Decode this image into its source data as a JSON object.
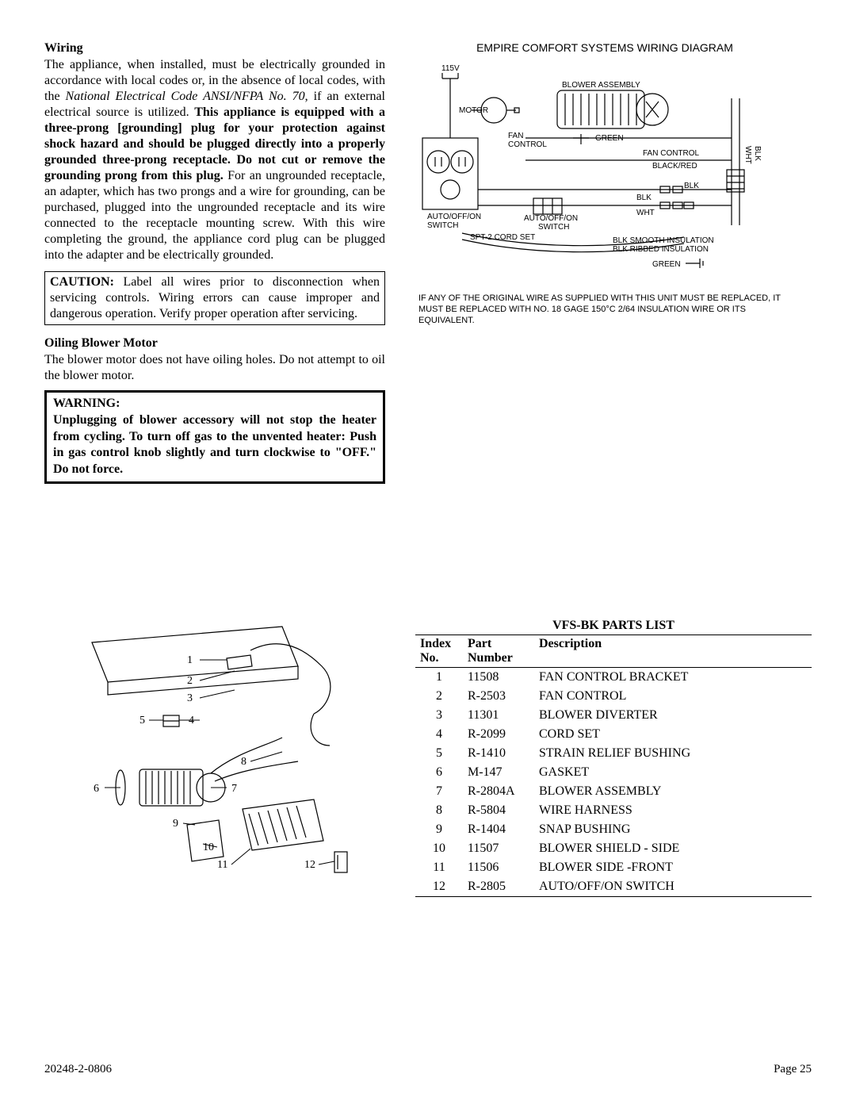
{
  "wiring": {
    "heading": "Wiring",
    "p1a": "The appliance, when installed, must be electrically grounded in accordance with local codes or, in the absence of local codes, with the ",
    "p1_italic": "National Electrical Code ANSI/NFPA No. 70",
    "p1b": ", if an external electrical source is utilized.  ",
    "p1_bold": "This appliance is equipped with a three-prong [grounding] plug for your protection against shock hazard and should be plugged directly into a properly grounded three-prong receptacle.  Do not cut or remove the grounding prong from this plug.",
    "p1c": "  For an ungrounded receptacle, an adapter, which has two prongs and a wire for grounding, can be purchased, plugged into the ungrounded receptacle and its wire connected to the receptacle mounting screw. With this wire completing the ground, the appliance cord plug can be plugged into the adapter and be electrically grounded."
  },
  "caution": {
    "label": "CAUTION:",
    "text": " Label all wires prior to disconnection when servicing controls. Wiring errors can cause improper and dangerous operation. Verify proper operation after servicing."
  },
  "oiling": {
    "heading": "Oiling Blower Motor",
    "text": "The blower motor does not have oiling holes.  Do not attempt to oil the blower motor."
  },
  "warning": {
    "heading": "WARNING:",
    "text": "Unplugging of blower accessory  will not stop the heater from cycling.  To turn off gas to the unvented heater:  Push in gas control knob slightly and turn clockwise to \"OFF.\"  Do not force."
  },
  "diagram": {
    "title": "EMPIRE COMFORT SYSTEMS WIRING DIAGRAM",
    "labels": {
      "v115": "115V",
      "motor": "MOTOR",
      "blower_assembly": "BLOWER ASSEMBLY",
      "fan_control": "FAN\nCONTROL",
      "green": "GREEN",
      "fan_control2": "FAN CONTROL",
      "black_red": "BLACK/RED",
      "blk": "BLK",
      "wht": "WHT",
      "blk2": "BLK",
      "wht2": "WHT",
      "auto_off_on": "AUTO/OFF/ON\nSWITCH",
      "auto_off_on2": "AUTO/OFF/ON\nSWITCH",
      "spt2": "SPT-2 CORD SET",
      "blk_smooth": "BLK SMOOTH INSULATION",
      "blk_ribbed": "BLK RIBBED INSULATION",
      "green2": "GREEN"
    },
    "note": "IF ANY OF THE ORIGINAL WIRE AS SUPPLIED WITH THIS UNIT MUST BE REPLACED, IT MUST BE REPLACED WITH NO. 18 GAGE 150°C 2/64 INSULATION WIRE OR ITS EQUIVALENT."
  },
  "parts": {
    "title": "VFS-BK PARTS LIST",
    "headers": {
      "idx": "Index No.",
      "part": "Part Number",
      "desc": "Description"
    },
    "rows": [
      {
        "idx": "1",
        "part": "11508",
        "desc": "FAN CONTROL BRACKET"
      },
      {
        "idx": "2",
        "part": "R-2503",
        "desc": "FAN CONTROL"
      },
      {
        "idx": "3",
        "part": "11301",
        "desc": "BLOWER DIVERTER"
      },
      {
        "idx": "4",
        "part": "R-2099",
        "desc": "CORD SET"
      },
      {
        "idx": "5",
        "part": "R-1410",
        "desc": "STRAIN RELIEF BUSHING"
      },
      {
        "idx": "6",
        "part": "M-147",
        "desc": "GASKET"
      },
      {
        "idx": "7",
        "part": "R-2804A",
        "desc": "BLOWER ASSEMBLY"
      },
      {
        "idx": "8",
        "part": "R-5804",
        "desc": "WIRE HARNESS"
      },
      {
        "idx": "9",
        "part": "R-1404",
        "desc": "SNAP BUSHING"
      },
      {
        "idx": "10",
        "part": "11507",
        "desc": "BLOWER SHIELD - SIDE"
      },
      {
        "idx": "11",
        "part": "11506",
        "desc": "BLOWER SIDE -FRONT"
      },
      {
        "idx": "12",
        "part": "R-2805",
        "desc": "AUTO/OFF/ON SWITCH"
      }
    ]
  },
  "footer": {
    "left": "20248-2-0806",
    "right": "Page 25"
  }
}
